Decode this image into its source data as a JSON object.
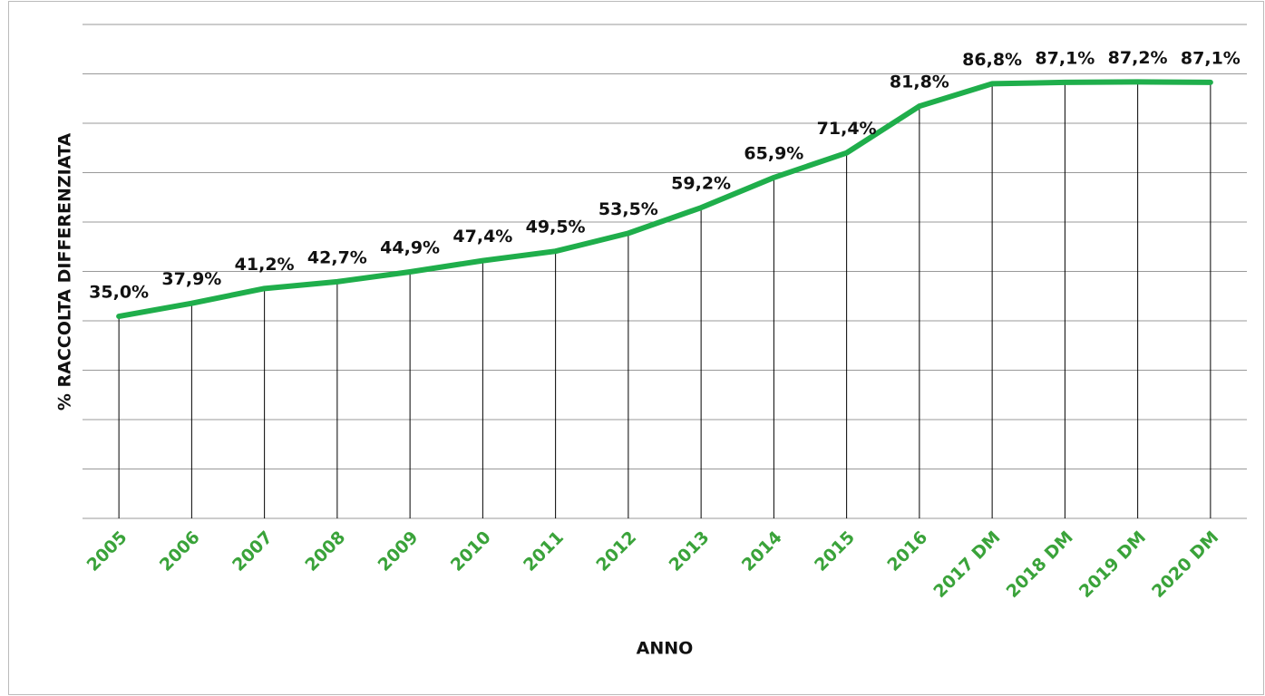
{
  "chart_data": {
    "type": "line",
    "x_label": "ANNO",
    "y_label": "% RACCOLTA DIFFERENZIATA",
    "categories": [
      "2005",
      "2006",
      "2007",
      "2008",
      "2009",
      "2010",
      "2011",
      "2012",
      "2013",
      "2014",
      "2015",
      "2016",
      "2017 DM",
      "2018 DM",
      "2019 DM",
      "2020 DM"
    ],
    "series": [
      {
        "name": "% raccolta differenziata",
        "color": "#1fae4b",
        "values": [
          35.0,
          37.9,
          41.2,
          42.7,
          44.9,
          47.4,
          49.5,
          53.5,
          59.2,
          65.9,
          71.4,
          81.8,
          86.8,
          87.1,
          87.2,
          87.1
        ],
        "value_labels": [
          "35,0%",
          "37,9%",
          "41,2%",
          "42,7%",
          "44,9%",
          "47,4%",
          "49,5%",
          "53,5%",
          "59,2%",
          "65,9%",
          "71,4%",
          "81,8%",
          "86,8%",
          "87,1%",
          "87,2%",
          "87,1%"
        ]
      }
    ],
    "ylim": [
      -10,
      100
    ],
    "yticks": [
      -10,
      1,
      12,
      23,
      34,
      45,
      56,
      67,
      78,
      89,
      100
    ],
    "grid": true,
    "drop_lines": true
  }
}
